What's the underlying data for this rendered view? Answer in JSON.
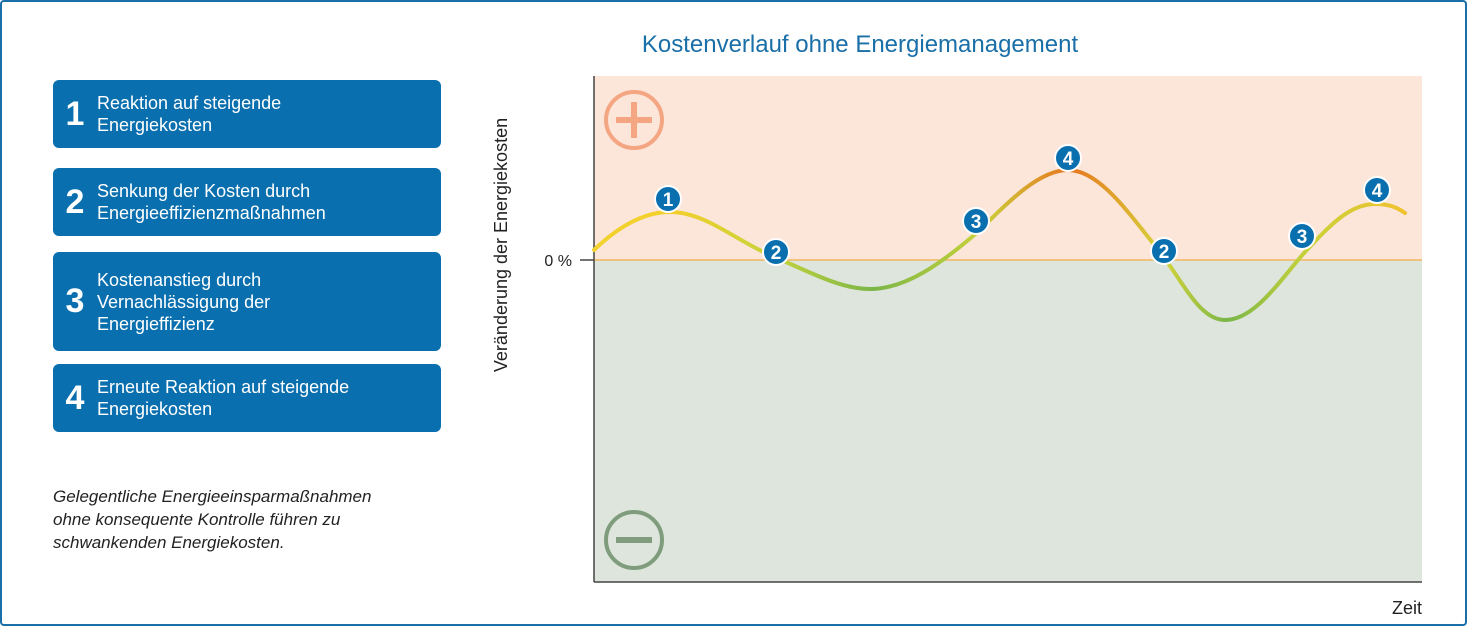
{
  "legend": [
    {
      "number": "1",
      "lines": [
        "Reaktion auf steigende",
        "Energiekosten"
      ]
    },
    {
      "number": "2",
      "lines": [
        "Senkung der Kosten durch",
        "Energieeffizienzmaßnahmen"
      ]
    },
    {
      "number": "3",
      "lines": [
        "Kostenanstieg durch",
        "Vernachlässigung der",
        "Energieffizienz"
      ]
    },
    {
      "number": "4",
      "lines": [
        "Erneute Reaktion auf steigende",
        "Energiekosten"
      ]
    }
  ],
  "caption": [
    "Gelegentliche Energieeinsparmaßnahmen",
    "ohne konsequente Kontrolle führen zu",
    "schwankenden Energiekosten."
  ],
  "chart": {
    "title": "Kostenverlauf ohne Energiemanagement",
    "y_label": "Veränderung der Energiekosten",
    "zero_label": "0 %",
    "x_label": "Zeit",
    "markers": [
      "1",
      "2",
      "3",
      "4",
      "2",
      "3",
      "4"
    ]
  }
}
